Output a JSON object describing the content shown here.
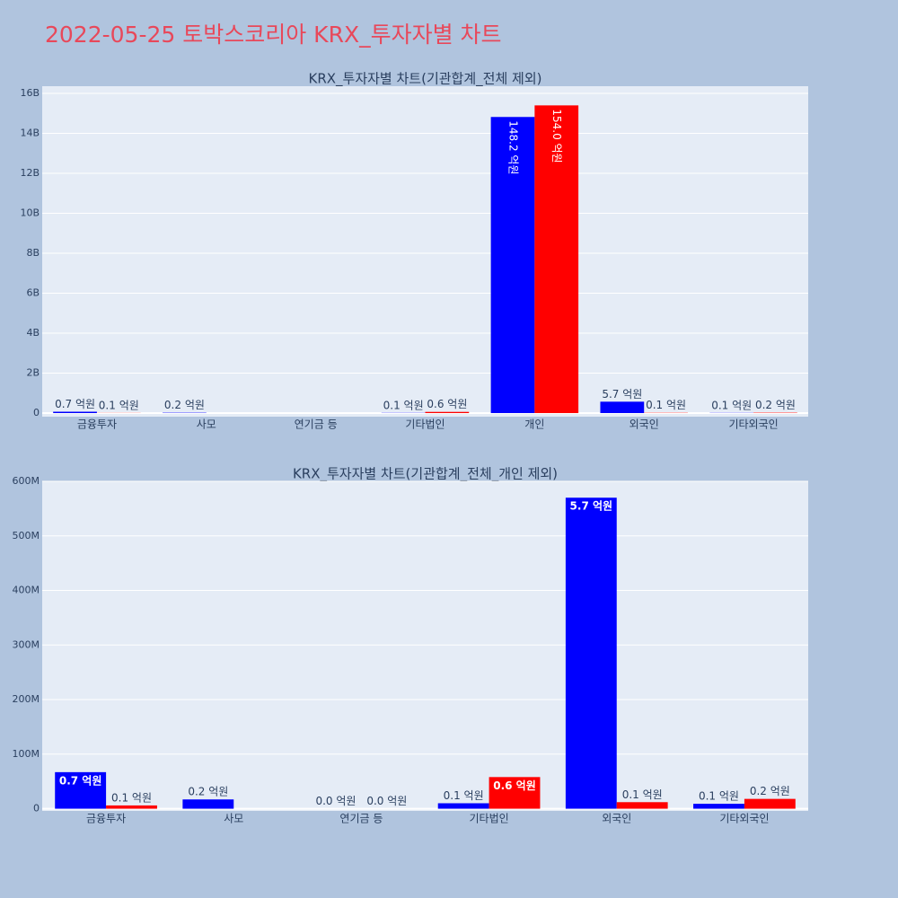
{
  "title": "2022-05-25 토박스코리아 KRX_투자자별 차트",
  "chart_data": [
    {
      "type": "bar",
      "title": "KRX_투자자별 차트(기관합계_전체 제외)",
      "categories": [
        "금융투자",
        "사모",
        "연기금 등",
        "기타법인",
        "개인",
        "외국인",
        "기타외국인"
      ],
      "series": [
        {
          "color": "blue",
          "values": [
            67000000,
            17000000,
            null,
            10000000,
            14820000000,
            570000000,
            9000000
          ],
          "value_labels": [
            "0.7 억원",
            "0.2 억원",
            null,
            "0.1 억원",
            "148.2 억원",
            "5.7 억원",
            "0.1 억원"
          ]
        },
        {
          "color": "red",
          "values": [
            6000000,
            null,
            null,
            58000000,
            15400000000,
            12000000,
            18000000
          ],
          "value_labels": [
            "0.1 억원",
            null,
            null,
            "0.6 억원",
            "154.0 억원",
            "0.1 억원",
            "0.2 억원"
          ]
        }
      ],
      "ylim": [
        -180000000,
        16360000000
      ],
      "yticks": [
        0,
        {
          "value": 2000000000,
          "label": "2B"
        },
        {
          "value": 4000000000,
          "label": "4B"
        },
        {
          "value": 6000000000,
          "label": "6B"
        },
        {
          "value": 8000000000,
          "label": "8B"
        },
        {
          "value": 10000000000,
          "label": "10B"
        },
        {
          "value": 12000000000,
          "label": "12B"
        },
        {
          "value": 14000000000,
          "label": "14B"
        },
        {
          "value": 16000000000,
          "label": "16B"
        }
      ],
      "grid": true
    },
    {
      "type": "bar",
      "title": "KRX_투자자별 차트(기관합계_전체_개인 제외)",
      "categories": [
        "금융투자",
        "사모",
        "연기금 등",
        "기타법인",
        "외국인",
        "기타외국인"
      ],
      "series": [
        {
          "color": "blue",
          "values": [
            67000000,
            17000000,
            0,
            10000000,
            570000000,
            9000000
          ],
          "value_labels": [
            "0.7 억원",
            "0.2 억원",
            "0.0 억원",
            "0.1 억원",
            "5.7 억원",
            "0.1 억원"
          ]
        },
        {
          "color": "red",
          "values": [
            6000000,
            null,
            0,
            58000000,
            12000000,
            18000000
          ],
          "value_labels": [
            "0.1 억원",
            null,
            "0.0 억원",
            "0.6 억원",
            "0.1 억원",
            "0.2 억원"
          ]
        }
      ],
      "ylim": [
        -4000000,
        600000000
      ],
      "yticks": [
        0,
        {
          "value": 100000000,
          "label": "100M"
        },
        {
          "value": 200000000,
          "label": "200M"
        },
        {
          "value": 300000000,
          "label": "300M"
        },
        {
          "value": 400000000,
          "label": "400M"
        },
        {
          "value": 500000000,
          "label": "500M"
        },
        {
          "value": 600000000,
          "label": "600M"
        }
      ],
      "grid": true
    }
  ]
}
